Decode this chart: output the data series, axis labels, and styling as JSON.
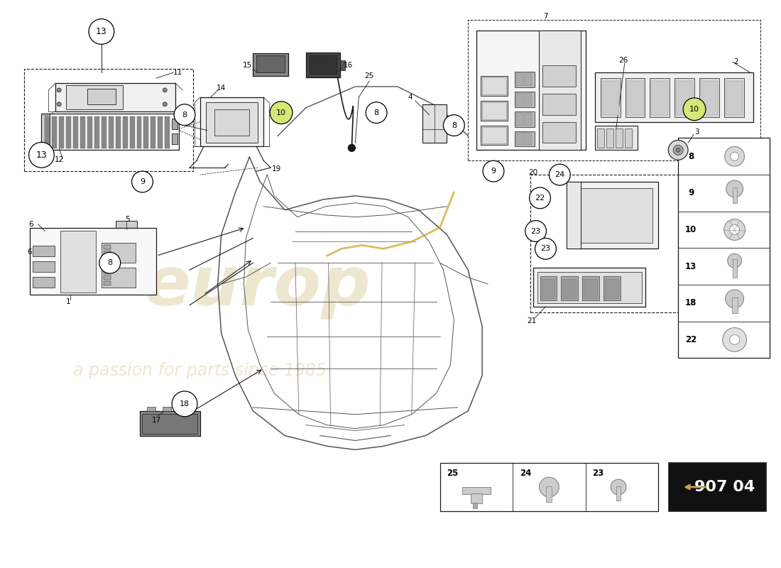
{
  "background_color": "#ffffff",
  "line_color": "#1a1a1a",
  "chassis_color": "#555555",
  "watermark_color": "#c8b060",
  "part_number": "907 04",
  "fastener_labels": [
    "22",
    "18",
    "13",
    "10",
    "9",
    "8"
  ],
  "bottom_labels": [
    "25",
    "24",
    "23"
  ]
}
